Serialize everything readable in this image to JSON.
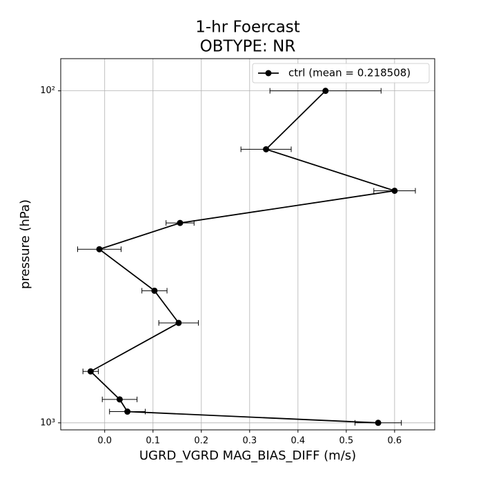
{
  "chart_data": {
    "type": "profile",
    "title": "1-hr Foercast",
    "subtitle": "OBTYPE: NR",
    "x_label": "UGRD_VGRD MAG_BIAS_DIFF (m/s)",
    "y_label": "pressure (hPa)",
    "y": [
      100,
      150,
      200,
      250,
      300,
      400,
      500,
      700,
      850,
      925,
      1000
    ],
    "series": [
      {
        "name": "ctrl (mean = 0.218508)",
        "color": "#000000",
        "values": [
          0.457,
          0.334,
          0.6,
          0.156,
          -0.011,
          0.103,
          0.153,
          -0.029,
          0.031,
          0.047,
          0.566
        ],
        "errors": [
          0.115,
          0.052,
          0.043,
          0.029,
          0.045,
          0.026,
          0.041,
          0.016,
          0.036,
          0.037,
          0.048
        ]
      }
    ],
    "xlim": [
      -0.091,
      0.683
    ],
    "xticks": [
      {
        "value": 0,
        "label": "0.0"
      },
      0.1,
      0.2,
      0.3,
      0.4,
      0.5,
      0.6
    ],
    "ylim": [
      1050,
      80
    ],
    "y_scale": "log",
    "yticks": [
      {
        "value": 100,
        "label": "10²"
      },
      {
        "value": 1000,
        "label": "10³"
      }
    ],
    "grid": true,
    "legend": "upper right"
  }
}
